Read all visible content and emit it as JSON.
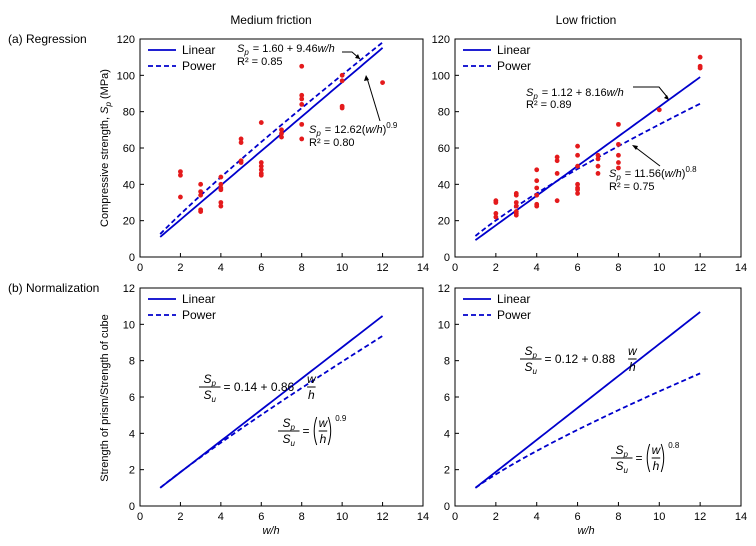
{
  "figure": {
    "col_titles": [
      "Medium friction",
      "Low friction"
    ],
    "row_labels": [
      "(a) Regression",
      "(b) Normalization"
    ],
    "ylabel_top": "Compressive strength, S_p (MPa)",
    "ylabel_bottom": "Strength of prism/Strength of cube",
    "xlabel": "w/h",
    "colors": {
      "line": "#0000cc",
      "points": "#e41a1c"
    }
  },
  "chart_data": [
    {
      "type": "scatter",
      "panel": "regression-medium",
      "title": "Medium friction",
      "row_label": "(a) Regression",
      "ylabel": "Compressive strength, S_p (MPa)",
      "xlim": [
        0,
        14
      ],
      "ylim": [
        0,
        120
      ],
      "xticks": [
        0,
        2,
        4,
        6,
        8,
        10,
        12,
        14
      ],
      "yticks": [
        0,
        20,
        40,
        60,
        80,
        100,
        120
      ],
      "legend_position": "top-left",
      "points": [
        [
          2,
          47
        ],
        [
          2,
          45
        ],
        [
          2,
          33
        ],
        [
          3,
          40
        ],
        [
          3,
          36
        ],
        [
          3,
          34
        ],
        [
          3,
          26
        ],
        [
          3,
          25
        ],
        [
          4,
          44
        ],
        [
          4,
          40
        ],
        [
          4,
          38
        ],
        [
          4,
          37
        ],
        [
          4,
          30
        ],
        [
          4,
          28
        ],
        [
          5,
          65
        ],
        [
          5,
          63
        ],
        [
          5,
          53
        ],
        [
          5,
          52
        ],
        [
          6,
          74
        ],
        [
          6,
          52
        ],
        [
          6,
          50
        ],
        [
          6,
          48
        ],
        [
          6,
          46
        ],
        [
          6,
          45
        ],
        [
          7,
          70
        ],
        [
          7,
          68
        ],
        [
          7,
          66
        ],
        [
          8,
          105
        ],
        [
          8,
          89
        ],
        [
          8,
          87
        ],
        [
          8,
          84
        ],
        [
          8,
          73
        ],
        [
          8,
          65
        ],
        [
          10,
          100
        ],
        [
          10,
          97
        ],
        [
          10,
          83
        ],
        [
          10,
          82
        ],
        [
          12,
          96
        ]
      ],
      "series": [
        {
          "name": "Linear",
          "style": "solid",
          "a": 1.6,
          "b": 9.46,
          "x_range": [
            1,
            12
          ]
        },
        {
          "name": "Power",
          "style": "dashed",
          "a": 12.62,
          "exp": 0.9,
          "x_range": [
            1,
            12
          ]
        }
      ],
      "annotations": [
        {
          "lines": [
            "S_p = 1.60 + 9.46w/h",
            "R² = 0.85"
          ]
        },
        {
          "lines": [
            "S_p = 12.62(w/h)^0.9",
            "R² = 0.80"
          ]
        }
      ]
    },
    {
      "type": "scatter",
      "panel": "regression-low",
      "title": "Low friction",
      "xlim": [
        0,
        14
      ],
      "ylim": [
        0,
        120
      ],
      "xticks": [
        0,
        2,
        4,
        6,
        8,
        10,
        12,
        14
      ],
      "yticks": [
        0,
        20,
        40,
        60,
        80,
        100,
        120
      ],
      "legend_position": "top-left",
      "points": [
        [
          2,
          31
        ],
        [
          2,
          30
        ],
        [
          2,
          24
        ],
        [
          2,
          22
        ],
        [
          3,
          35
        ],
        [
          3,
          34
        ],
        [
          3,
          30
        ],
        [
          3,
          28
        ],
        [
          3,
          25
        ],
        [
          3,
          24
        ],
        [
          3,
          23
        ],
        [
          4,
          48
        ],
        [
          4,
          42
        ],
        [
          4,
          38
        ],
        [
          4,
          34
        ],
        [
          4,
          29
        ],
        [
          4,
          28
        ],
        [
          5,
          55
        ],
        [
          5,
          53
        ],
        [
          5,
          46
        ],
        [
          5,
          31
        ],
        [
          6,
          61
        ],
        [
          6,
          56
        ],
        [
          6,
          50
        ],
        [
          6,
          40
        ],
        [
          6,
          38
        ],
        [
          6,
          37
        ],
        [
          6,
          35
        ],
        [
          7,
          56
        ],
        [
          7,
          54
        ],
        [
          7,
          50
        ],
        [
          7,
          46
        ],
        [
          8,
          73
        ],
        [
          8,
          62
        ],
        [
          8,
          56
        ],
        [
          8,
          52
        ],
        [
          8,
          49
        ],
        [
          10,
          81
        ],
        [
          12,
          110
        ],
        [
          12,
          105
        ],
        [
          12,
          104
        ]
      ],
      "series": [
        {
          "name": "Linear",
          "style": "solid",
          "a": 1.12,
          "b": 8.16,
          "x_range": [
            1,
            12
          ]
        },
        {
          "name": "Power",
          "style": "dashed",
          "a": 11.56,
          "exp": 0.8,
          "x_range": [
            1,
            12
          ]
        }
      ],
      "annotations": [
        {
          "lines": [
            "S_p = 1.12 + 8.16w/h",
            "R² = 0.89"
          ]
        },
        {
          "lines": [
            "S_p = 11.56(w/h)^0.8",
            "R² = 0.75"
          ]
        }
      ]
    },
    {
      "type": "line",
      "panel": "normalization-medium",
      "row_label": "(b) Normalization",
      "ylabel": "Strength of prism/Strength of cube",
      "xlabel": "w/h",
      "xlim": [
        0,
        14
      ],
      "ylim": [
        0,
        12
      ],
      "xticks": [
        0,
        2,
        4,
        6,
        8,
        10,
        12,
        14
      ],
      "yticks": [
        0,
        2,
        4,
        6,
        8,
        10,
        12
      ],
      "legend_position": "top-left",
      "series": [
        {
          "name": "Linear",
          "style": "solid",
          "a": 0.14,
          "b": 0.86,
          "x_range": [
            1,
            12
          ]
        },
        {
          "name": "Power",
          "style": "dashed",
          "a": 1,
          "exp": 0.9,
          "x_range": [
            1,
            12
          ]
        }
      ],
      "annotations": [
        {
          "lhs_num": "S_p",
          "lhs_den": "S_u",
          "rhs": "= 0.14 + 0.86",
          "frac_num": "w",
          "frac_den": "h"
        },
        {
          "lhs_num": "S_p",
          "lhs_den": "S_u",
          "rhs": "=",
          "frac_num": "w",
          "frac_den": "h",
          "exponent": "0.9"
        }
      ]
    },
    {
      "type": "line",
      "panel": "normalization-low",
      "xlabel": "w/h",
      "xlim": [
        0,
        14
      ],
      "ylim": [
        0,
        12
      ],
      "xticks": [
        0,
        2,
        4,
        6,
        8,
        10,
        12,
        14
      ],
      "yticks": [
        0,
        2,
        4,
        6,
        8,
        10,
        12
      ],
      "legend_position": "top-left",
      "series": [
        {
          "name": "Linear",
          "style": "solid",
          "a": 0.12,
          "b": 0.88,
          "x_range": [
            1,
            12
          ]
        },
        {
          "name": "Power",
          "style": "dashed",
          "a": 1,
          "exp": 0.8,
          "x_range": [
            1,
            12
          ]
        }
      ],
      "annotations": [
        {
          "lhs_num": "S_p",
          "lhs_den": "S_u",
          "rhs": "= 0.12 + 0.88",
          "frac_num": "w",
          "frac_den": "h"
        },
        {
          "lhs_num": "S_p",
          "lhs_den": "S_u",
          "rhs": "=",
          "frac_num": "w",
          "frac_den": "h",
          "exponent": "0.8"
        }
      ]
    }
  ]
}
